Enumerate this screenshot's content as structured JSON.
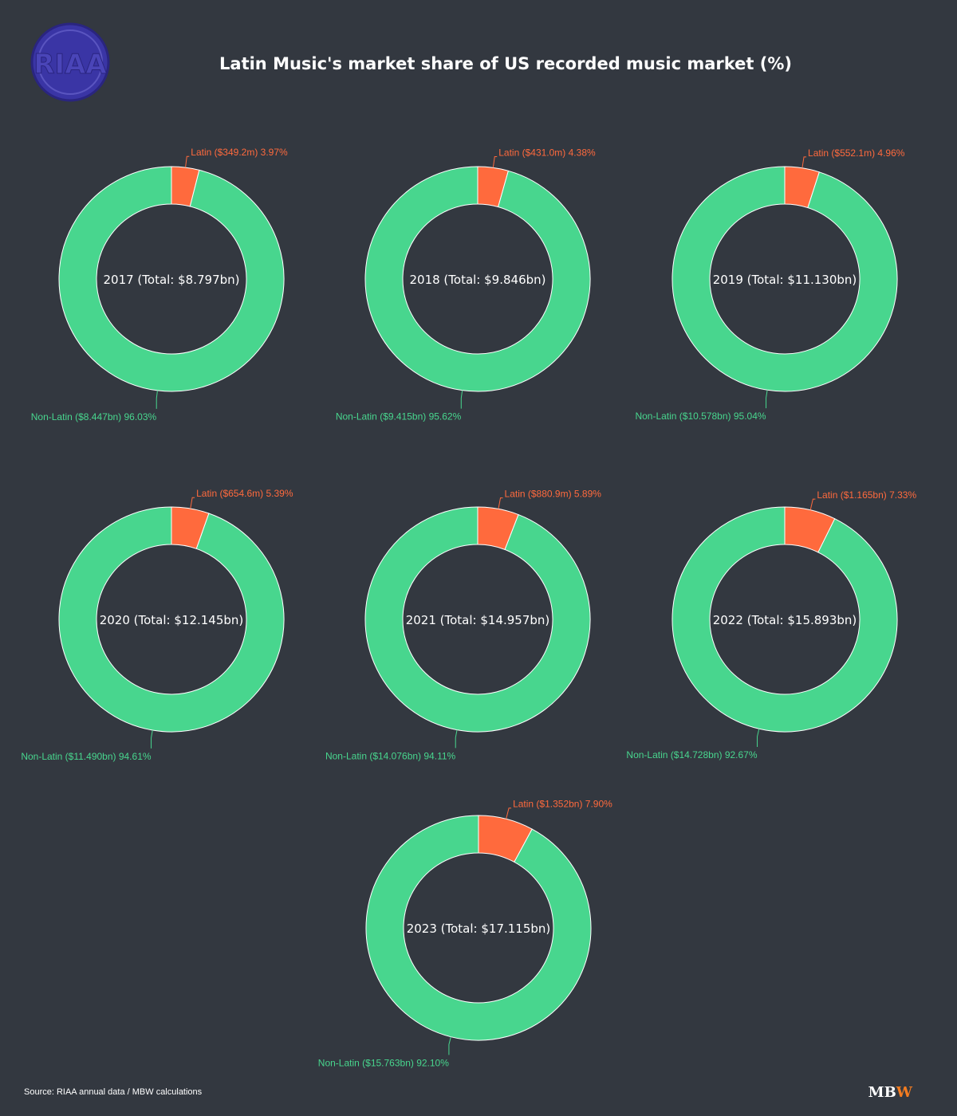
{
  "chart_data": {
    "type": "pie",
    "title": "Latin Music's market share of US recorded music market (%)",
    "source": "Source: RIAA annual data / MBW calculations",
    "logo": {
      "text": "RIAA",
      "color": "#3a35a5"
    },
    "brand": {
      "first": "MB",
      "second": "W",
      "first_color": "#ffffff",
      "second_color": "#f47c20"
    },
    "colors": {
      "latin": "#ff6a3d",
      "non_latin": "#48d68e",
      "background": "#333840"
    },
    "charts": [
      {
        "year": "2017",
        "center_label": "2017 (Total: $8.797bn)",
        "latin_share": 3.97,
        "non_latin_share": 96.03,
        "latin_label": "Latin ($349.2m) 3.97%",
        "non_latin_label": "Non-Latin ($8.447bn) 96.03%"
      },
      {
        "year": "2018",
        "center_label": "2018 (Total: $9.846bn)",
        "latin_share": 4.38,
        "non_latin_share": 95.62,
        "latin_label": "Latin ($431.0m) 4.38%",
        "non_latin_label": "Non-Latin ($9.415bn) 95.62%"
      },
      {
        "year": "2019",
        "center_label": "2019 (Total: $11.130bn)",
        "latin_share": 4.96,
        "non_latin_share": 95.04,
        "latin_label": "Latin ($552.1m) 4.96%",
        "non_latin_label": "Non-Latin ($10.578bn) 95.04%"
      },
      {
        "year": "2020",
        "center_label": "2020 (Total: $12.145bn)",
        "latin_share": 5.39,
        "non_latin_share": 94.61,
        "latin_label": "Latin ($654.6m) 5.39%",
        "non_latin_label": "Non-Latin ($11.490bn) 94.61%"
      },
      {
        "year": "2021",
        "center_label": "2021 (Total: $14.957bn)",
        "latin_share": 5.89,
        "non_latin_share": 94.11,
        "latin_label": "Latin ($880.9m) 5.89%",
        "non_latin_label": "Non-Latin ($14.076bn) 94.11%"
      },
      {
        "year": "2022",
        "center_label": "2022 (Total: $15.893bn)",
        "latin_share": 7.33,
        "non_latin_share": 92.67,
        "latin_label": "Latin ($1.165bn) 7.33%",
        "non_latin_label": "Non-Latin ($14.728bn) 92.67%"
      },
      {
        "year": "2023",
        "center_label": "2023 (Total: $17.115bn)",
        "latin_share": 7.9,
        "non_latin_share": 92.1,
        "latin_label": "Latin ($1.352bn) 7.90%",
        "non_latin_label": "Non-Latin ($15.763bn) 92.10%"
      }
    ]
  }
}
